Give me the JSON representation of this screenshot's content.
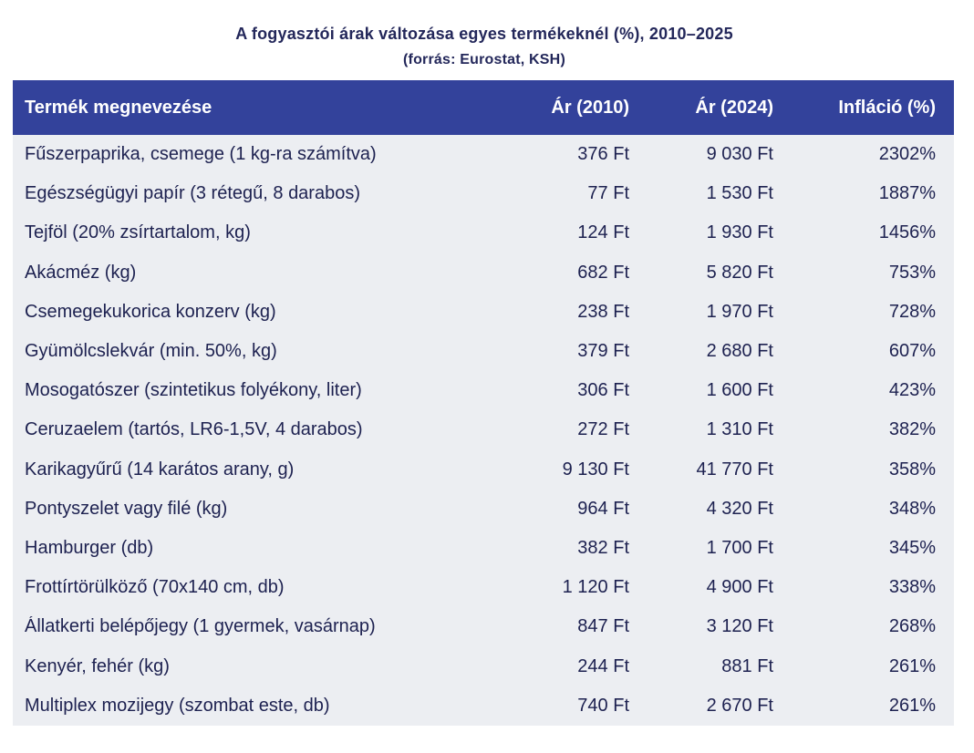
{
  "page": {
    "title": "A fogyasztói árak változása egyes termékeknél (%), 2010–2025",
    "subtitle": "(forrás: Eurostat, KSH)"
  },
  "colors": {
    "header_bg": "#33429b",
    "header_text": "#ffffff",
    "body_bg": "#eceef2",
    "text": "#1d2150",
    "page_bg": "#ffffff"
  },
  "chart_data": {
    "type": "table",
    "title": "A fogyasztói árak változása egyes termékeknél (%), 2010–2025",
    "subtitle": "(forrás: Eurostat, KSH)",
    "columns": [
      "Termék megnevezése",
      "Ár (2010)",
      "Ár (2024)",
      "Infláció (%)"
    ],
    "column_alignment": [
      "left",
      "right",
      "right",
      "right"
    ],
    "rows": [
      [
        "Fűszerpaprika, csemege (1 kg-ra számítva)",
        "376 Ft",
        "9 030 Ft",
        "2302%"
      ],
      [
        "Egészségügyi papír (3 rétegű, 8 darabos)",
        "77 Ft",
        "1 530 Ft",
        "1887%"
      ],
      [
        "Tejföl (20% zsírtartalom, kg)",
        "124 Ft",
        "1 930 Ft",
        "1456%"
      ],
      [
        "Akácméz (kg)",
        "682 Ft",
        "5 820 Ft",
        "753%"
      ],
      [
        "Csemegekukorica konzerv (kg)",
        "238 Ft",
        "1 970 Ft",
        "728%"
      ],
      [
        "Gyümölcslekvár (min. 50%, kg)",
        "379 Ft",
        "2 680 Ft",
        "607%"
      ],
      [
        "Mosogatószer (szintetikus folyékony, liter)",
        "306 Ft",
        "1 600 Ft",
        "423%"
      ],
      [
        "Ceruzaelem (tartós, LR6-1,5V, 4 darabos)",
        "272 Ft",
        "1 310 Ft",
        "382%"
      ],
      [
        "Karikagyűrű (14 karátos arany, g)",
        "9 130 Ft",
        "41 770 Ft",
        "358%"
      ],
      [
        "Pontyszelet vagy filé (kg)",
        "964 Ft",
        "4 320 Ft",
        "348%"
      ],
      [
        "Hamburger (db)",
        "382 Ft",
        "1 700 Ft",
        "345%"
      ],
      [
        "Frottírtörülköző (70x140 cm, db)",
        "1 120 Ft",
        "4 900 Ft",
        "338%"
      ],
      [
        "Állatkerti belépőjegy (1 gyermek, vasárnap)",
        "847 Ft",
        "3 120 Ft",
        "268%"
      ],
      [
        "Kenyér, fehér (kg)",
        "244 Ft",
        "881 Ft",
        "261%"
      ],
      [
        "Multiplex mozijegy (szombat este, db)",
        "740 Ft",
        "2 670 Ft",
        "261%"
      ]
    ],
    "value_units": {
      "price_2010": "Ft",
      "price_2024": "Ft",
      "inflation": "%"
    },
    "layout": {
      "header_position": "top",
      "grid": false,
      "row_striping": false
    }
  }
}
